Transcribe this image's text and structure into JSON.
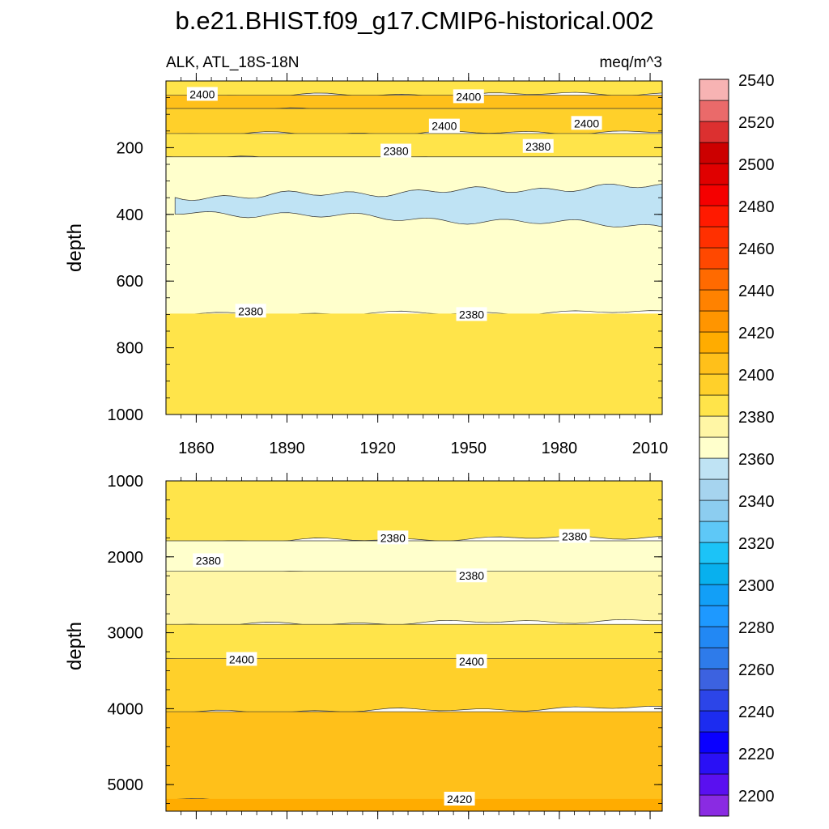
{
  "chart_data": {
    "type": "heatmap",
    "title": "b.e21.BHIST.f09_g17.CMIP6-historical.002",
    "variable_label": "ALK, ATL_18S-18N",
    "units_label": "meq/m^3",
    "colorbar": {
      "levels": [
        2200,
        2210,
        2220,
        2230,
        2240,
        2250,
        2260,
        2270,
        2280,
        2290,
        2300,
        2310,
        2320,
        2330,
        2340,
        2350,
        2360,
        2370,
        2380,
        2390,
        2400,
        2410,
        2420,
        2430,
        2440,
        2450,
        2460,
        2470,
        2480,
        2490,
        2500,
        2510,
        2520,
        2530,
        2540,
        2550
      ],
      "tick_labels": [
        "2200",
        "2220",
        "2240",
        "2260",
        "2280",
        "2300",
        "2320",
        "2340",
        "2360",
        "2380",
        "2400",
        "2420",
        "2440",
        "2460",
        "2480",
        "2500",
        "2520",
        "2540"
      ],
      "colors": [
        "#8a2be2",
        "#5a10f0",
        "#2a10f5",
        "#0a00ff",
        "#1c2cf0",
        "#2c45e8",
        "#3c62e0",
        "#2e7bea",
        "#2288f4",
        "#1e99ff",
        "#129ff7",
        "#08b0ee",
        "#1cc3f7",
        "#5ec8f7",
        "#8ccdf0",
        "#a6d4ef",
        "#bfe3f4",
        "#ffffcc",
        "#fff6a5",
        "#ffe44a",
        "#ffd02a",
        "#ffc01a",
        "#ffac00",
        "#ff9500",
        "#ff8200",
        "#ff6a00",
        "#ff4800",
        "#ff3000",
        "#ff1a00",
        "#f50000",
        "#e00000",
        "#cc0000",
        "#dc3030",
        "#ea6a6a",
        "#f7b3b3"
      ]
    },
    "panels": [
      {
        "name": "upper-ocean",
        "ylabel": "depth",
        "ylim": [
          0,
          1000
        ],
        "yticks": [
          200,
          400,
          600,
          800,
          1000
        ],
        "xlim": [
          1850,
          2014
        ],
        "xticks": [
          1860,
          1890,
          1920,
          1950,
          1980,
          2010
        ],
        "bands": [
          {
            "from": 0,
            "to": 45,
            "value": 2390
          },
          {
            "from": 45,
            "to": 85,
            "value": 2410
          },
          {
            "from": 85,
            "to": 160,
            "value": 2400
          },
          {
            "from": 160,
            "to": 230,
            "value": 2390
          },
          {
            "from": 230,
            "to": 700,
            "value": 2375
          },
          {
            "from": 700,
            "to": 1000,
            "value": 2390
          }
        ],
        "low_patch": {
          "value": 2365,
          "depth_range": [
            330,
            450
          ],
          "x_range": [
            1853,
            2014
          ]
        },
        "contour_labels": [
          {
            "text": "2400",
            "x": 1862,
            "y": 40
          },
          {
            "text": "2400",
            "x": 1950,
            "y": 47
          },
          {
            "text": "2400",
            "x": 1942,
            "y": 135
          },
          {
            "text": "2400",
            "x": 1989,
            "y": 127
          },
          {
            "text": "2380",
            "x": 1926,
            "y": 210
          },
          {
            "text": "2380",
            "x": 1973,
            "y": 196
          },
          {
            "text": "2380",
            "x": 1878,
            "y": 690
          },
          {
            "text": "2380",
            "x": 1951,
            "y": 700
          }
        ]
      },
      {
        "name": "deep-ocean",
        "ylabel": "depth",
        "ylim": [
          1000,
          5350
        ],
        "yticks": [
          1000,
          2000,
          3000,
          4000,
          5000
        ],
        "xlim": [
          1850,
          2014
        ],
        "bands": [
          {
            "from": 1000,
            "to": 1800,
            "value": 2390
          },
          {
            "from": 1800,
            "to": 2200,
            "value": 2375
          },
          {
            "from": 2200,
            "to": 2900,
            "value": 2385
          },
          {
            "from": 2900,
            "to": 3350,
            "value": 2395
          },
          {
            "from": 3350,
            "to": 4050,
            "value": 2405
          },
          {
            "from": 4050,
            "to": 5200,
            "value": 2415
          },
          {
            "from": 5200,
            "to": 5350,
            "value": 2425
          }
        ],
        "contour_labels": [
          {
            "text": "2380",
            "x": 1925,
            "y": 1750
          },
          {
            "text": "2380",
            "x": 1985,
            "y": 1730
          },
          {
            "text": "2380",
            "x": 1864,
            "y": 2050
          },
          {
            "text": "2380",
            "x": 1951,
            "y": 2250
          },
          {
            "text": "2400",
            "x": 1875,
            "y": 3350
          },
          {
            "text": "2400",
            "x": 1951,
            "y": 3380
          },
          {
            "text": "2420",
            "x": 1947,
            "y": 5190
          }
        ]
      }
    ]
  }
}
